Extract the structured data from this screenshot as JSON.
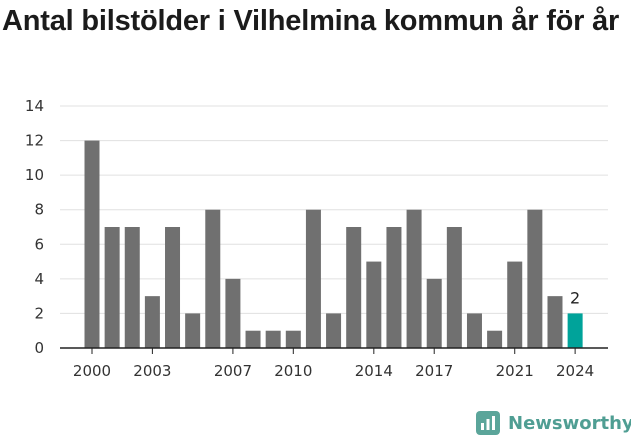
{
  "title": "Antal bilstölder i Vilhelmina kommun år för år",
  "brand": {
    "name": "Newsworthy",
    "icon": "newsworthy-logo-icon"
  },
  "colors": {
    "bar": "#707070",
    "highlight": "#00a39a",
    "grid": "#e0e0e0"
  },
  "chart_data": {
    "type": "bar",
    "title": "Antal bilstölder i Vilhelmina kommun år för år",
    "categories": [
      "2000",
      "2001",
      "2002",
      "2003",
      "2004",
      "2005",
      "2006",
      "2007",
      "2008",
      "2009",
      "2010",
      "2011",
      "2012",
      "2013",
      "2014",
      "2015",
      "2016",
      "2017",
      "2018",
      "2019",
      "2020",
      "2021",
      "2022",
      "2023",
      "2024"
    ],
    "values": [
      12,
      7,
      7,
      3,
      7,
      2,
      8,
      4,
      1,
      1,
      1,
      8,
      2,
      7,
      5,
      7,
      8,
      4,
      7,
      2,
      1,
      5,
      8,
      3,
      2
    ],
    "xtick_labels": [
      "2000",
      "2003",
      "2007",
      "2010",
      "2014",
      "2017",
      "2021",
      "2024"
    ],
    "yticks": [
      0,
      2,
      4,
      6,
      8,
      10,
      12,
      14
    ],
    "ylim": [
      0,
      14
    ],
    "highlight_index": 24,
    "data_labels": [
      {
        "index": 24,
        "text": "2"
      }
    ],
    "grid": true,
    "xlabel": "",
    "ylabel": ""
  }
}
